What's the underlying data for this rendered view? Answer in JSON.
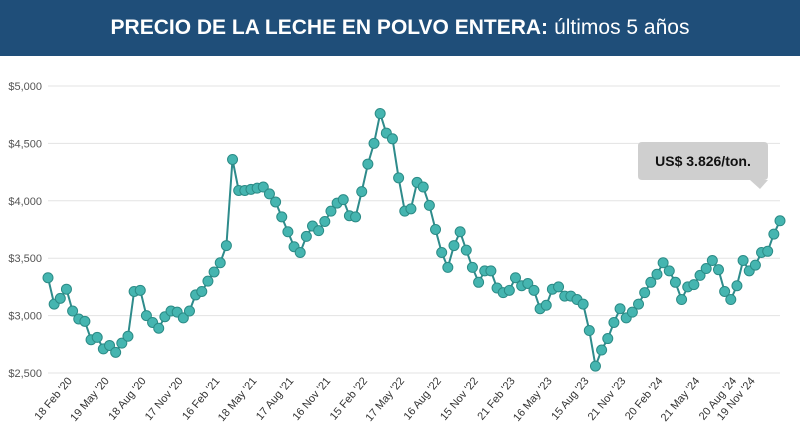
{
  "header": {
    "title_bold": "PRECIO DE LA LECHE EN POLVO ENTERA:",
    "title_light": "últimos 5 años"
  },
  "colors": {
    "header_bg": "#1f4e79",
    "line": "#2e8b8b",
    "marker_fill": "#45b5b0",
    "marker_stroke": "#2b8b86",
    "grid": "#e3e3e3",
    "callout_bg": "#cfcfcf"
  },
  "chart_data": {
    "type": "line",
    "title": "PRECIO DE LA LECHE EN POLVO ENTERA: últimos 5 años",
    "xlabel": "",
    "ylabel": "",
    "ylim": [
      2500,
      5000
    ],
    "yticks": [
      2500,
      3000,
      3500,
      4000,
      4500,
      5000
    ],
    "ytick_labels": [
      "$2,500",
      "$3,000",
      "$3,500",
      "$4,000",
      "$4,500",
      "$5,000"
    ],
    "grid": true,
    "xtick_labels": [
      {
        "label": "18 Feb '20",
        "index": 4
      },
      {
        "label": "19 May '20",
        "index": 10
      },
      {
        "label": "18 Aug '20",
        "index": 16
      },
      {
        "label": "17 Nov '20",
        "index": 22
      },
      {
        "label": "16 Feb '21",
        "index": 28
      },
      {
        "label": "18 May '21",
        "index": 34
      },
      {
        "label": "17 Aug '21",
        "index": 40
      },
      {
        "label": "16 Nov '21",
        "index": 46
      },
      {
        "label": "15 Feb '22",
        "index": 52
      },
      {
        "label": "17 May '22",
        "index": 58
      },
      {
        "label": "16 Aug '22",
        "index": 64
      },
      {
        "label": "15 Nov '22",
        "index": 70
      },
      {
        "label": "21 Feb '23",
        "index": 76
      },
      {
        "label": "16 May '23",
        "index": 82
      },
      {
        "label": "15 Aug '23",
        "index": 88
      },
      {
        "label": "21 Nov '23",
        "index": 94
      },
      {
        "label": "20 Feb '24",
        "index": 100
      },
      {
        "label": "21 May '24",
        "index": 106
      },
      {
        "label": "20 Aug '24",
        "index": 112
      },
      {
        "label": "19 Nov '24",
        "index": 115
      }
    ],
    "series": [
      {
        "values": [
          3330,
          3100,
          3150,
          3230,
          3040,
          2970,
          2950,
          2790,
          2810,
          2710,
          2740,
          2680,
          2760,
          2820,
          3210,
          3220,
          3000,
          2940,
          2890,
          2990,
          3040,
          3030,
          2980,
          3040,
          3180,
          3210,
          3300,
          3380,
          3460,
          3610,
          4360,
          4090,
          4090,
          4100,
          4110,
          4120,
          4060,
          3990,
          3860,
          3730,
          3600,
          3550,
          3690,
          3780,
          3740,
          3820,
          3910,
          3980,
          4010,
          3870,
          3860,
          4080,
          4320,
          4500,
          4760,
          4590,
          4540,
          4200,
          3910,
          3930,
          4160,
          4120,
          3960,
          3750,
          3550,
          3420,
          3610,
          3730,
          3570,
          3420,
          3290,
          3390,
          3390,
          3240,
          3200,
          3220,
          3330,
          3260,
          3280,
          3220,
          3060,
          3090,
          3230,
          3250,
          3170,
          3170,
          3140,
          3100,
          2870,
          2560,
          2700,
          2800,
          2940,
          3060,
          2980,
          3030,
          3100,
          3200,
          3290,
          3360,
          3460,
          3390,
          3290,
          3140,
          3250,
          3270,
          3350,
          3410,
          3480,
          3400,
          3210,
          3140,
          3260,
          3480,
          3390,
          3440,
          3550,
          3560,
          3710,
          3826
        ]
      }
    ],
    "annotation": {
      "text": "US$ 3.826/ton.",
      "index": 119,
      "value": 3826
    }
  }
}
